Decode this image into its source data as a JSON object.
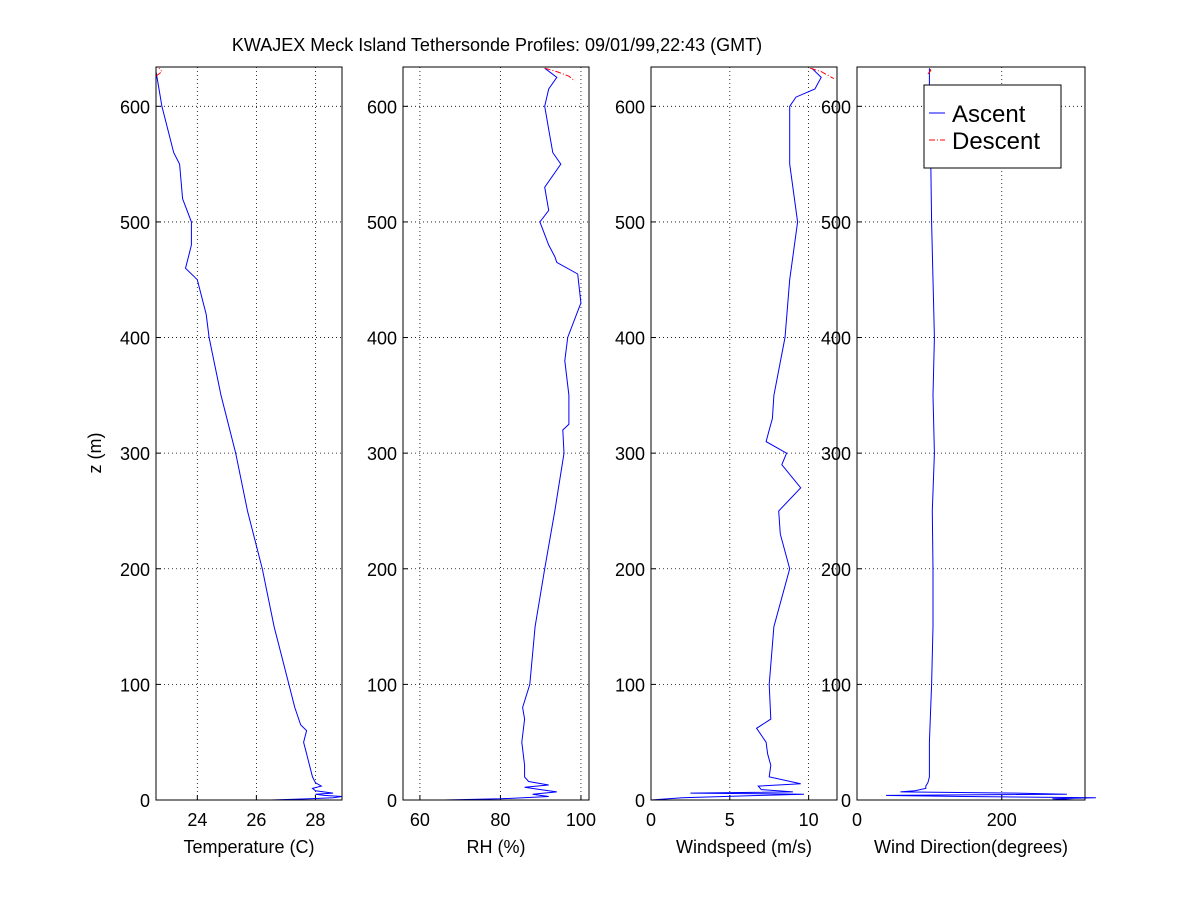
{
  "title": "KWAJEX Meck Island Tethersonde Profiles: 09/01/99,22:43 (GMT)",
  "colors": {
    "ascent": "#0000ff",
    "descent": "#ff0000",
    "grid": "#000000"
  },
  "legend": {
    "placement": "top-right of Wind Direction panel",
    "entries": [
      {
        "label": "Ascent",
        "style": "solid",
        "color": "#0000ff"
      },
      {
        "label": "Descent",
        "style": "dash-dot",
        "color": "#ff0000"
      }
    ]
  },
  "chart_data": [
    {
      "type": "line",
      "xlabel": "Temperature (C)",
      "ylabel": "z (m)",
      "xlim": [
        22.6,
        28.9
      ],
      "ylim": [
        0,
        634
      ],
      "grid": true,
      "xticks": [
        24,
        26,
        28
      ],
      "yticks": [
        0,
        100,
        200,
        300,
        400,
        500,
        600
      ],
      "series": [
        {
          "name": "Ascent",
          "z": [
            0,
            0,
            1,
            2,
            3,
            4,
            5,
            6,
            8,
            10,
            12,
            15,
            20,
            30,
            40,
            50,
            60,
            65,
            80,
            100,
            150,
            200,
            250,
            300,
            350,
            400,
            420,
            450,
            460,
            470,
            480,
            500,
            520,
            550,
            560,
            580,
            600,
            615,
            630
          ],
          "x": [
            25.4,
            26.5,
            27.8,
            28.6,
            28.9,
            28.3,
            28.0,
            28.6,
            28.0,
            27.9,
            28.2,
            28.0,
            27.9,
            27.8,
            27.7,
            27.6,
            27.7,
            27.5,
            27.3,
            27.1,
            26.6,
            26.2,
            25.7,
            25.3,
            24.8,
            24.4,
            24.3,
            24.0,
            23.6,
            23.7,
            23.8,
            23.8,
            23.5,
            23.4,
            23.2,
            23.0,
            22.8,
            22.7,
            22.6
          ]
        },
        {
          "name": "Descent",
          "z": [
            626,
            630,
            633
          ],
          "x": [
            22.6,
            22.8,
            22.7
          ]
        }
      ]
    },
    {
      "type": "line",
      "xlabel": "RH (%)",
      "xlim": [
        55.8,
        102
      ],
      "ylim": [
        0,
        634
      ],
      "grid": true,
      "xticks": [
        60,
        80,
        100
      ],
      "yticks": [
        0,
        100,
        200,
        300,
        400,
        500,
        600
      ],
      "series": [
        {
          "name": "Ascent",
          "z": [
            0,
            0,
            1,
            3,
            5,
            7,
            9,
            11,
            13,
            16,
            20,
            30,
            50,
            70,
            80,
            100,
            150,
            200,
            250,
            300,
            320,
            325,
            350,
            380,
            400,
            430,
            455,
            465,
            470,
            480,
            500,
            510,
            530,
            550,
            560,
            580,
            600,
            615,
            625,
            633
          ],
          "x": [
            56,
            66,
            80,
            92,
            88,
            94,
            90,
            86,
            92,
            87,
            86,
            86,
            85.3,
            86,
            85.5,
            87.3,
            88.6,
            91,
            93.5,
            95.8,
            95.5,
            97,
            97,
            96,
            96.7,
            100,
            99.2,
            94,
            93.5,
            92,
            89.8,
            92,
            91,
            95,
            93,
            92,
            91,
            92,
            94,
            91
          ]
        },
        {
          "name": "Descent",
          "z": [
            633,
            630,
            626,
            622
          ],
          "x": [
            91,
            94,
            97,
            98.5
          ]
        }
      ]
    },
    {
      "type": "line",
      "xlabel": "Windspeed (m/s)",
      "xlim": [
        0,
        11.8
      ],
      "ylim": [
        0,
        634
      ],
      "grid": true,
      "xticks": [
        0,
        5,
        10
      ],
      "yticks": [
        0,
        100,
        200,
        300,
        400,
        500,
        600
      ],
      "series": [
        {
          "name": "Ascent",
          "z": [
            0,
            2,
            4,
            5,
            6,
            7,
            9,
            12,
            14,
            20,
            30,
            40,
            50,
            62,
            70,
            100,
            150,
            200,
            230,
            250,
            270,
            290,
            300,
            310,
            320,
            330,
            350,
            400,
            450,
            500,
            550,
            600,
            608,
            615,
            625,
            633
          ],
          "x": [
            0,
            2,
            7,
            9.7,
            2.5,
            9,
            7,
            6.8,
            9.5,
            7.5,
            7.6,
            7.4,
            7.3,
            6.7,
            7.6,
            7.5,
            7.8,
            8.8,
            8.2,
            8.1,
            9.5,
            8.3,
            8.6,
            7.3,
            7.5,
            7.7,
            7.8,
            8.5,
            8.8,
            9.3,
            8.8,
            8.8,
            9.2,
            10.4,
            10.8,
            10.2
          ]
        },
        {
          "name": "Descent",
          "z": [
            633,
            630,
            627,
            624
          ],
          "x": [
            10.1,
            10.8,
            11.2,
            11.6
          ]
        }
      ]
    },
    {
      "type": "line",
      "xlabel": "Wind Direction(degrees)",
      "xlim": [
        0,
        315
      ],
      "ylim": [
        0,
        634
      ],
      "grid": true,
      "xticks": [
        0,
        200
      ],
      "yticks": [
        0,
        100,
        200,
        300,
        400,
        500,
        600
      ],
      "series": [
        {
          "name": "Ascent",
          "z": [
            0,
            1,
            2,
            3,
            4,
            5,
            6,
            7,
            8,
            10,
            12,
            15,
            20,
            50,
            100,
            150,
            200,
            250,
            300,
            350,
            400,
            450,
            500,
            550,
            600,
            633
          ],
          "x": [
            300,
            270,
            330,
            150,
            40,
            290,
            220,
            60,
            80,
            95,
            95,
            98,
            100,
            100,
            103,
            105,
            105,
            104,
            107,
            105,
            107,
            105,
            103,
            102,
            100,
            100
          ]
        },
        {
          "name": "Descent",
          "z": [
            628,
            631,
            634
          ],
          "x": [
            98,
            102,
            100
          ]
        }
      ]
    }
  ]
}
